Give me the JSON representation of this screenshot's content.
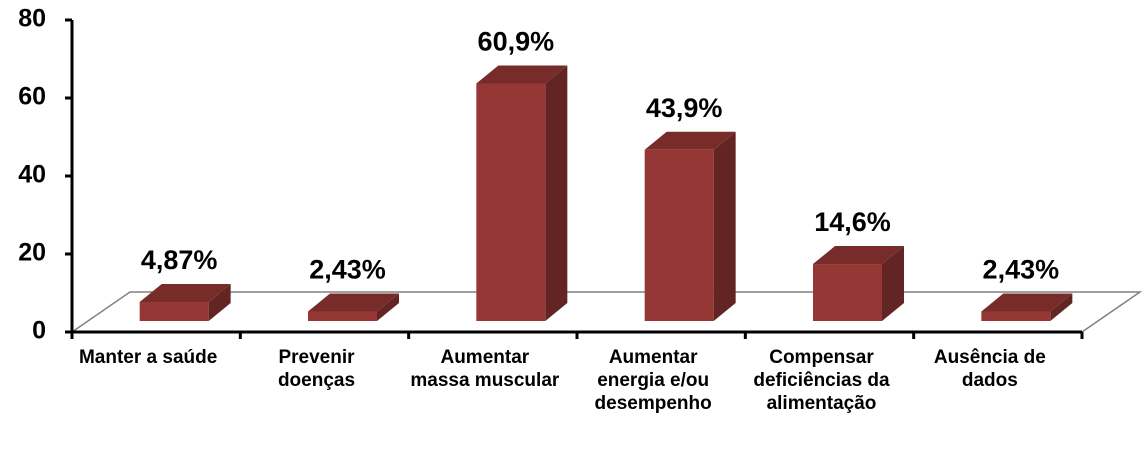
{
  "chart_data": {
    "type": "bar",
    "categories": [
      "Manter a saúde",
      "Prevenir doenças",
      "Aumentar massa muscular",
      "Aumentar energia e/ou desempenho",
      "Compensar deficiências da alimentação",
      "Ausência de dados"
    ],
    "values": [
      4.87,
      2.43,
      60.9,
      43.9,
      14.6,
      2.43
    ],
    "value_labels": [
      "4,87%",
      "2,43%",
      "60,9%",
      "43,9%",
      "14,6%",
      "2,43%"
    ],
    "color": "#953735",
    "ylim": [
      0,
      80
    ],
    "yticks": [
      0,
      20,
      40,
      60,
      80
    ]
  }
}
